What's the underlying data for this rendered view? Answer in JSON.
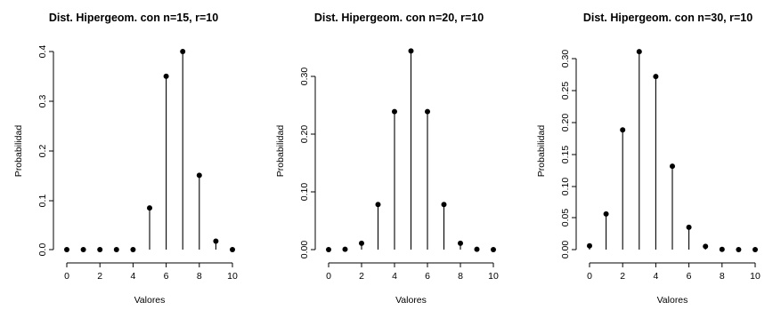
{
  "chart_data": [
    {
      "type": "stem",
      "title": "Dist. Hipergeom. con n=15, r=10",
      "xlabel": "Valores",
      "ylabel": "Probabilidad",
      "x": [
        0,
        1,
        2,
        3,
        4,
        5,
        6,
        7,
        8,
        9,
        10
      ],
      "values": [
        0.0,
        0.0,
        0.0,
        0.0,
        0.0,
        0.084,
        0.35,
        0.4,
        0.15,
        0.017,
        0.0
      ],
      "xticks": [
        "0",
        "2",
        "4",
        "6",
        "8",
        "10"
      ],
      "yticks": [
        "0.0",
        "0.1",
        "0.2",
        "0.3",
        "0.4"
      ],
      "xlim": [
        0,
        10
      ],
      "ylim": [
        0,
        0.4
      ]
    },
    {
      "type": "stem",
      "title": "Dist. Hipergeom. con n=20, r=10",
      "xlabel": "Valores",
      "ylabel": "Probabilidad",
      "x": [
        0,
        1,
        2,
        3,
        4,
        5,
        6,
        7,
        8,
        9,
        10
      ],
      "values": [
        0.0,
        0.0005,
        0.011,
        0.078,
        0.239,
        0.344,
        0.239,
        0.078,
        0.011,
        0.0005,
        0.0
      ],
      "xticks": [
        "0",
        "2",
        "4",
        "6",
        "8",
        "10"
      ],
      "yticks": [
        "0.00",
        "0.10",
        "0.20",
        "0.30"
      ],
      "xlim": [
        0,
        10
      ],
      "ylim": [
        0,
        0.3
      ]
    },
    {
      "type": "stem",
      "title": "Dist. Hipergeom. con n=30, r=10",
      "xlabel": "Valores",
      "ylabel": "Probabilidad",
      "x": [
        0,
        1,
        2,
        3,
        4,
        5,
        6,
        7,
        8,
        9,
        10
      ],
      "values": [
        0.006,
        0.056,
        0.188,
        0.311,
        0.272,
        0.131,
        0.035,
        0.005,
        0.0004,
        0.0,
        0.0
      ],
      "xticks": [
        "0",
        "2",
        "4",
        "6",
        "8",
        "10"
      ],
      "yticks": [
        "0.00",
        "0.05",
        "0.10",
        "0.15",
        "0.20",
        "0.25",
        "0.30"
      ],
      "xlim": [
        0,
        10
      ],
      "ylim": [
        0,
        0.3
      ]
    }
  ]
}
